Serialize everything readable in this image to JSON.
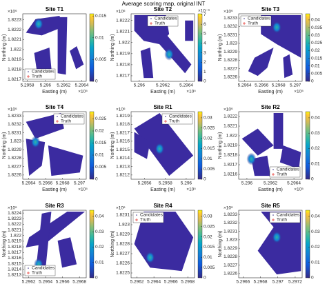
{
  "title": "Average scoring map, original INT",
  "chart_data": [
    {
      "type": "heatmap",
      "title": "Site T1",
      "xlabel": "Easting (m)",
      "ylabel": "Northing (m)",
      "x_multiplier": "×10⁵",
      "y_multiplier": "×10⁶",
      "xlim": [
        5.29575,
        5.29645
      ],
      "xticks": [
        5.2958,
        5.296,
        5.2962,
        5.2964
      ],
      "ylim": [
        1.82168,
        1.82236
      ],
      "yticks": [
        1.8217,
        1.8218,
        1.8219,
        1.822,
        1.8221,
        1.8222,
        1.8223
      ],
      "clim": [
        0,
        0.0155
      ],
      "cticks": [
        0,
        0.005,
        0.01,
        0.015
      ],
      "legend": [
        {
          "name": "Candidates",
          "color": "#352a87"
        },
        {
          "name": "Truth",
          "color": "#e8403a"
        }
      ],
      "legend_loc": "lower-left"
    },
    {
      "type": "heatmap",
      "title": "Site T2",
      "xlabel": "Easting (m)",
      "ylabel": "Northing (m)",
      "x_multiplier": "×10⁵",
      "y_multiplier": "×10⁶",
      "c_multiplier": "×10⁻³",
      "xlim": [
        5.29593,
        5.29647
      ],
      "xticks": [
        5.296,
        5.2962,
        5.2964
      ],
      "ylim": [
        1.82165,
        1.82226
      ],
      "yticks": [
        1.8217,
        1.8218,
        1.8219,
        1.822,
        1.8221,
        1.8222
      ],
      "clim": [
        0,
        0.0071
      ],
      "cticks": [
        0,
        {
          "value": 0.001,
          "label": "1"
        },
        {
          "value": 0.002,
          "label": "2"
        },
        {
          "value": 0.003,
          "label": "3"
        },
        {
          "value": 0.004,
          "label": "4"
        },
        {
          "value": 0.005,
          "label": "5"
        },
        {
          "value": 0.006,
          "label": "6"
        },
        {
          "value": 0.007,
          "label": "7"
        }
      ],
      "legend": [
        {
          "name": "Candidates",
          "color": "#352a87"
        },
        {
          "name": "Truth",
          "color": "#e8403a"
        }
      ],
      "legend_loc": "upper-center"
    },
    {
      "type": "heatmap",
      "title": "Site T3",
      "xlabel": "Easting (m)",
      "ylabel": "Northing (m)",
      "x_multiplier": "×10⁵",
      "y_multiplier": "×10⁶",
      "xlim": [
        5.29633,
        5.29708
      ],
      "xticks": [
        5.2964,
        5.2966,
        5.2968,
        5.297
      ],
      "ylim": [
        1.82255,
        1.82335
      ],
      "yticks": [
        1.8226,
        1.8227,
        1.8228,
        1.8229,
        1.823,
        1.8231,
        1.8232,
        1.8233
      ],
      "clim": [
        0,
        0.044
      ],
      "cticks": [
        0,
        0.005,
        0.01,
        0.015,
        0.02,
        0.025,
        0.03,
        0.035,
        0.04
      ],
      "legend": [
        {
          "name": "Candidates",
          "color": "#352a87"
        },
        {
          "name": "Truth",
          "color": "#e8403a"
        }
      ],
      "legend_loc": "upper-left"
    },
    {
      "type": "heatmap",
      "title": "Site T4",
      "xlabel": "Easting (m)",
      "ylabel": "Northing (m)",
      "x_multiplier": "×10⁵",
      "y_multiplier": "×10⁶",
      "xlim": [
        5.29633,
        5.29708
      ],
      "xticks": [
        5.2964,
        5.2966,
        5.2968,
        5.297
      ],
      "ylim": [
        1.82255,
        1.82335
      ],
      "yticks": [
        1.8226,
        1.8227,
        1.8228,
        1.8229,
        1.823,
        1.8231,
        1.8232,
        1.8233
      ],
      "clim": [
        0,
        0.028
      ],
      "cticks": [
        0,
        0.005,
        0.01,
        0.015,
        0.02,
        0.025
      ],
      "legend": [
        {
          "name": "Candidates",
          "color": "#352a87"
        },
        {
          "name": "Truth",
          "color": "#e8403a"
        }
      ],
      "legend_loc": "upper-right"
    },
    {
      "type": "heatmap",
      "title": "Site R1",
      "xlabel": "Easting (m)",
      "ylabel": "Northing (m)",
      "x_multiplier": "×10⁵",
      "y_multiplier": "×10⁶",
      "xlim": [
        5.29547,
        5.29608
      ],
      "xticks": [
        5.2956,
        5.2958,
        5.296
      ],
      "ylim": [
        1.82115,
        1.82195
      ],
      "yticks": [
        1.8212,
        1.8213,
        1.8214,
        1.8215,
        1.8216,
        1.8217,
        1.8218,
        1.8219
      ],
      "clim": [
        0,
        0.033
      ],
      "cticks": [
        0,
        0.005,
        0.01,
        0.015,
        0.02,
        0.025,
        0.03
      ],
      "legend": [
        {
          "name": "Candidates",
          "color": "#352a87"
        },
        {
          "name": "Truth",
          "color": "#e8403a"
        }
      ],
      "legend_loc": "upper-right"
    },
    {
      "type": "heatmap",
      "title": "Site R2",
      "xlabel": "Easting (m)",
      "ylabel": "Northing (m)",
      "x_multiplier": "×10⁵",
      "y_multiplier": "×10⁶",
      "xlim": [
        5.29593,
        5.29647
      ],
      "xticks": [
        5.296,
        5.2962,
        5.2964
      ],
      "ylim": [
        1.82155,
        1.82225
      ],
      "yticks": [
        1.8216,
        1.8217,
        1.8218,
        1.8219,
        1.822,
        1.8221,
        1.8222
      ],
      "clim": [
        0,
        0.044
      ],
      "cticks": [
        0,
        0.01,
        0.02,
        0.03,
        0.04
      ],
      "legend": [
        {
          "name": "Candidates",
          "color": "#352a87"
        },
        {
          "name": "Truth",
          "color": "#e8403a"
        }
      ],
      "legend_loc": "lower-right"
    },
    {
      "type": "heatmap",
      "title": "Site R3",
      "xlabel": "Easting (m)",
      "ylabel": "Northing (m)",
      "x_multiplier": "×10⁵",
      "y_multiplier": "×10⁶",
      "xlim": [
        5.29613,
        5.29688
      ],
      "xticks": [
        5.2962,
        5.2964,
        5.2966,
        5.2968
      ],
      "ylim": [
        1.82125,
        1.82245
      ],
      "yticks": [
        1.8213,
        1.8214,
        1.8215,
        1.8216,
        1.8217,
        1.8218,
        1.8219,
        1.822,
        1.8221,
        1.8222,
        1.8223,
        1.8224
      ],
      "clim": [
        0,
        0.044
      ],
      "cticks": [
        0,
        0.01,
        0.02,
        0.03,
        0.04
      ],
      "legend": [
        {
          "name": "Candidates",
          "color": "#352a87"
        },
        {
          "name": "Truth",
          "color": "#e8403a"
        }
      ],
      "legend_loc": "lower-left"
    },
    {
      "type": "heatmap",
      "title": "Site R4",
      "xlabel": "Easting (m)",
      "ylabel": "Northing (m)",
      "x_multiplier": "×10⁵",
      "y_multiplier": "×10⁶",
      "xlim": [
        5.29613,
        5.29688
      ],
      "xticks": [
        5.2962,
        5.2964,
        5.2966,
        5.2968
      ],
      "ylim": [
        1.82245,
        1.82315
      ],
      "yticks": [
        1.8225,
        1.8226,
        1.8227,
        1.8228,
        1.8229,
        1.823,
        1.8231
      ],
      "clim": [
        0,
        0.033
      ],
      "cticks": [
        0,
        0.005,
        0.01,
        0.015,
        0.02,
        0.025,
        0.03
      ],
      "legend": [
        {
          "name": "Candidates",
          "color": "#352a87"
        },
        {
          "name": "Truth",
          "color": "#e8403a"
        }
      ],
      "legend_loc": "upper-left"
    },
    {
      "type": "heatmap",
      "title": "Site R5",
      "xlabel": "Easting (m)",
      "ylabel": "Northing (m)",
      "x_multiplier": "×10⁵",
      "y_multiplier": "×10⁶",
      "xlim": [
        5.29655,
        5.29728
      ],
      "xticks": [
        5.2966,
        5.2968,
        5.297,
        5.2972
      ],
      "ylim": [
        1.82255,
        1.82335
      ],
      "yticks": [
        1.8226,
        1.8227,
        1.8228,
        1.8229,
        1.823,
        1.8231,
        1.8232,
        1.8233
      ],
      "clim": [
        0,
        0.044
      ],
      "cticks": [
        0,
        0.01,
        0.02,
        0.03,
        0.04
      ],
      "legend": [
        {
          "name": "Candidates",
          "color": "#352a87"
        },
        {
          "name": "Truth",
          "color": "#e8403a"
        }
      ],
      "legend_loc": "upper-right"
    }
  ]
}
